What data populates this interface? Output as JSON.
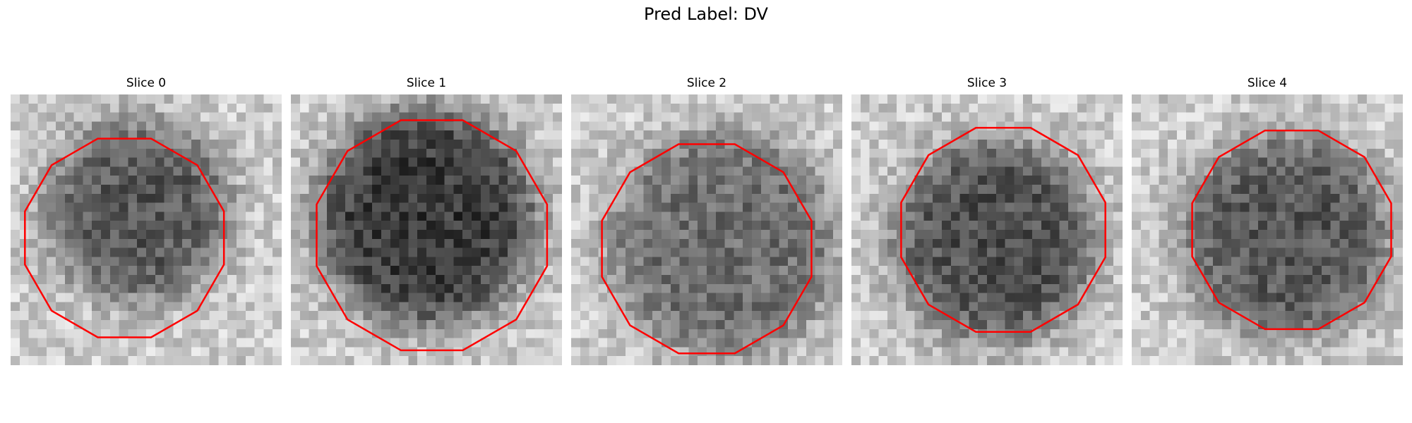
{
  "figure": {
    "title": "Pred Label: DV"
  },
  "colors": {
    "contour": "#ff0000",
    "background": "#ffffff"
  },
  "panels": [
    {
      "title": "Slice 0"
    },
    {
      "title": "Slice 1"
    },
    {
      "title": "Slice 2"
    },
    {
      "title": "Slice 3"
    },
    {
      "title": "Slice 4"
    }
  ]
}
